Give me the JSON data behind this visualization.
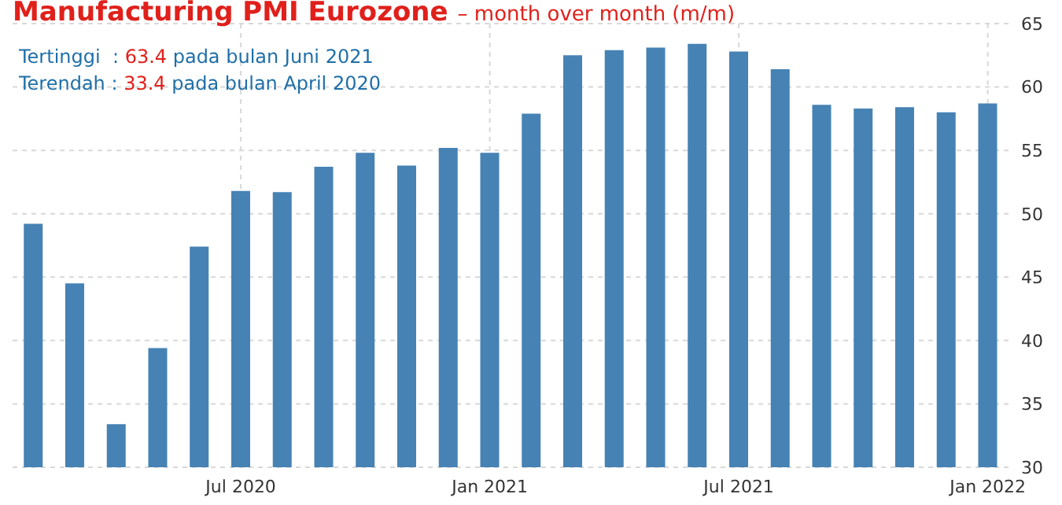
{
  "chart_data": {
    "type": "bar",
    "title": "Manufacturing PMI Eurozone",
    "subtitle": "– month over month (m/m)",
    "annotations": [
      "Tertinggi  : 63.4 pada bulan Juni 2021",
      "Terendah : 33.4 pada bulan April 2020"
    ],
    "categories": [
      null,
      null,
      null,
      null,
      null,
      "Jul 2020",
      null,
      null,
      null,
      null,
      null,
      "Jan 2021",
      null,
      null,
      null,
      null,
      null,
      "Jul 2021",
      null,
      null,
      null,
      null,
      null,
      "Jan 2022"
    ],
    "values": [
      49.2,
      44.5,
      33.4,
      39.4,
      47.4,
      51.8,
      51.7,
      53.7,
      54.8,
      53.8,
      55.2,
      54.8,
      57.9,
      62.5,
      62.9,
      63.1,
      63.4,
      62.8,
      61.4,
      58.6,
      58.3,
      58.4,
      58.0,
      58.7
    ],
    "color": "#4682b4",
    "ylim": [
      30,
      65
    ],
    "yticks": [
      30,
      35,
      40,
      45,
      50,
      55,
      60,
      65
    ],
    "grid": true
  }
}
